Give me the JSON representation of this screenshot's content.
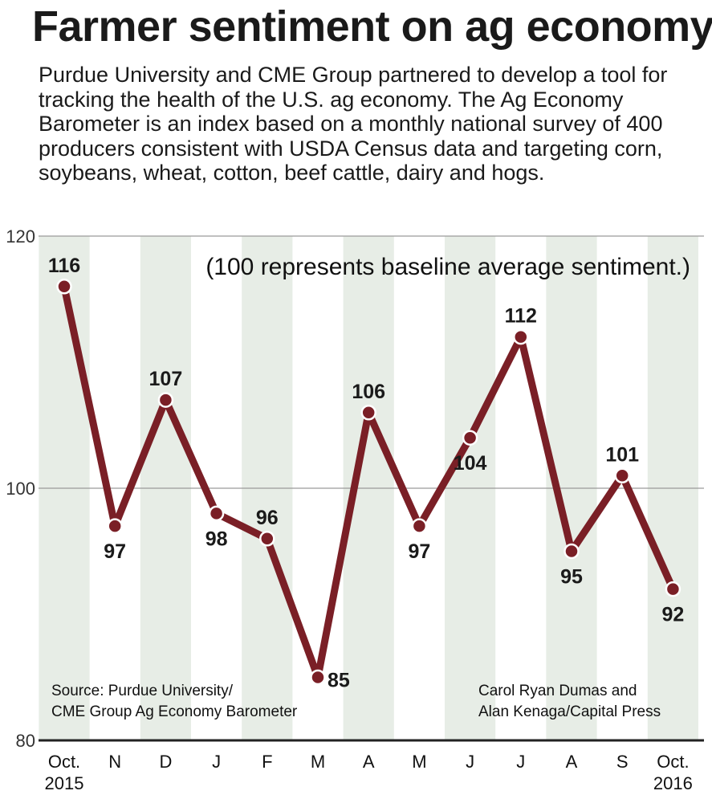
{
  "title": "Farmer sentiment on ag economy",
  "intro": "Purdue University and CME Group partnered to develop a tool for tracking the health of the U.S. ag economy. The Ag Economy Barometer is an index based on a monthly national survey of 400 producers consistent with USDA Census data and targeting corn, soybeans, wheat, cotton, beef cattle, dairy and hogs.",
  "note": "(100 represents baseline average sentiment.)",
  "source": [
    "Source: Purdue University/",
    "CME Group Ag Economy Barometer"
  ],
  "credit": [
    "Carol Ryan Dumas and",
    "Alan Kenaga/Capital Press"
  ],
  "colors": {
    "line": "#7a1f26",
    "band": "#e7ede6",
    "gridline": "#9a9a9a",
    "axis": "#222222"
  },
  "chart_data": {
    "type": "line",
    "title": "Farmer sentiment on ag economy",
    "xlabel": "",
    "ylabel": "",
    "categories": [
      "Oct.\n2015",
      "N",
      "D",
      "J",
      "F",
      "M",
      "A",
      "M",
      "J",
      "J",
      "A",
      "S",
      "Oct.\n2016"
    ],
    "series": [
      {
        "values": [
          116,
          97,
          107,
          98,
          96,
          85,
          106,
          97,
          104,
          112,
          95,
          101,
          92
        ]
      }
    ],
    "data_labels": [
      "116",
      "97",
      "107",
      "98",
      "96",
      "85",
      "106",
      "97",
      "104",
      "112",
      "95",
      "101",
      "92"
    ],
    "label_placement": [
      "above",
      "below",
      "above",
      "below",
      "above",
      "right",
      "above",
      "below",
      "below",
      "above",
      "below",
      "above",
      "below"
    ],
    "yticks": [
      "120",
      "100",
      "80"
    ],
    "ylim": [
      80,
      120
    ],
    "grid": "horizontal line at 100; alternating vertical bands",
    "legend": "none"
  }
}
